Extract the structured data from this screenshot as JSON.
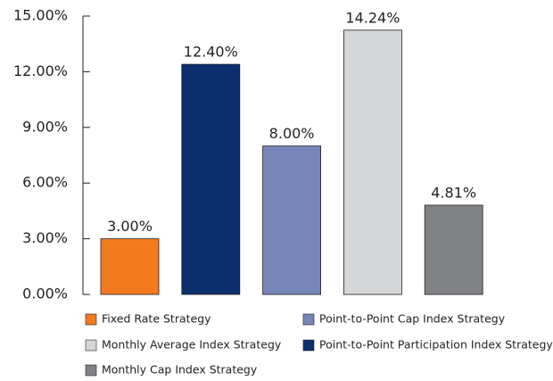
{
  "chart_data": {
    "type": "bar",
    "series": [
      {
        "name": "Fixed Rate Strategy",
        "color": "#f47a20",
        "values": [
          3.0
        ],
        "value_labels": [
          "3.00%"
        ]
      },
      {
        "name": "Point-to-Point Participation Index Strategy",
        "color": "#0b2f6e",
        "values": [
          12.4
        ],
        "value_labels": [
          "12.40%"
        ]
      },
      {
        "name": "Point-to-Point Cap Index Strategy",
        "color": "#7686b8",
        "values": [
          8.0
        ],
        "value_labels": [
          "8.00%"
        ]
      },
      {
        "name": "Monthly Average Index Strategy",
        "color": "#d5d6d8",
        "values": [
          14.24
        ],
        "value_labels": [
          "14.24%"
        ]
      },
      {
        "name": "Monthly Cap Index Strategy",
        "color": "#808285",
        "values": [
          4.81
        ],
        "value_labels": [
          "4.81%"
        ]
      }
    ],
    "ylim": [
      0,
      15
    ],
    "yticks": [
      {
        "value": 0,
        "label": "0.00%"
      },
      {
        "value": 3,
        "label": "3.00%"
      },
      {
        "value": 6,
        "label": "6.00%"
      },
      {
        "value": 9,
        "label": "9.00%"
      },
      {
        "value": 12,
        "label": "12.00%"
      },
      {
        "value": 15,
        "label": "15.00%"
      }
    ]
  }
}
